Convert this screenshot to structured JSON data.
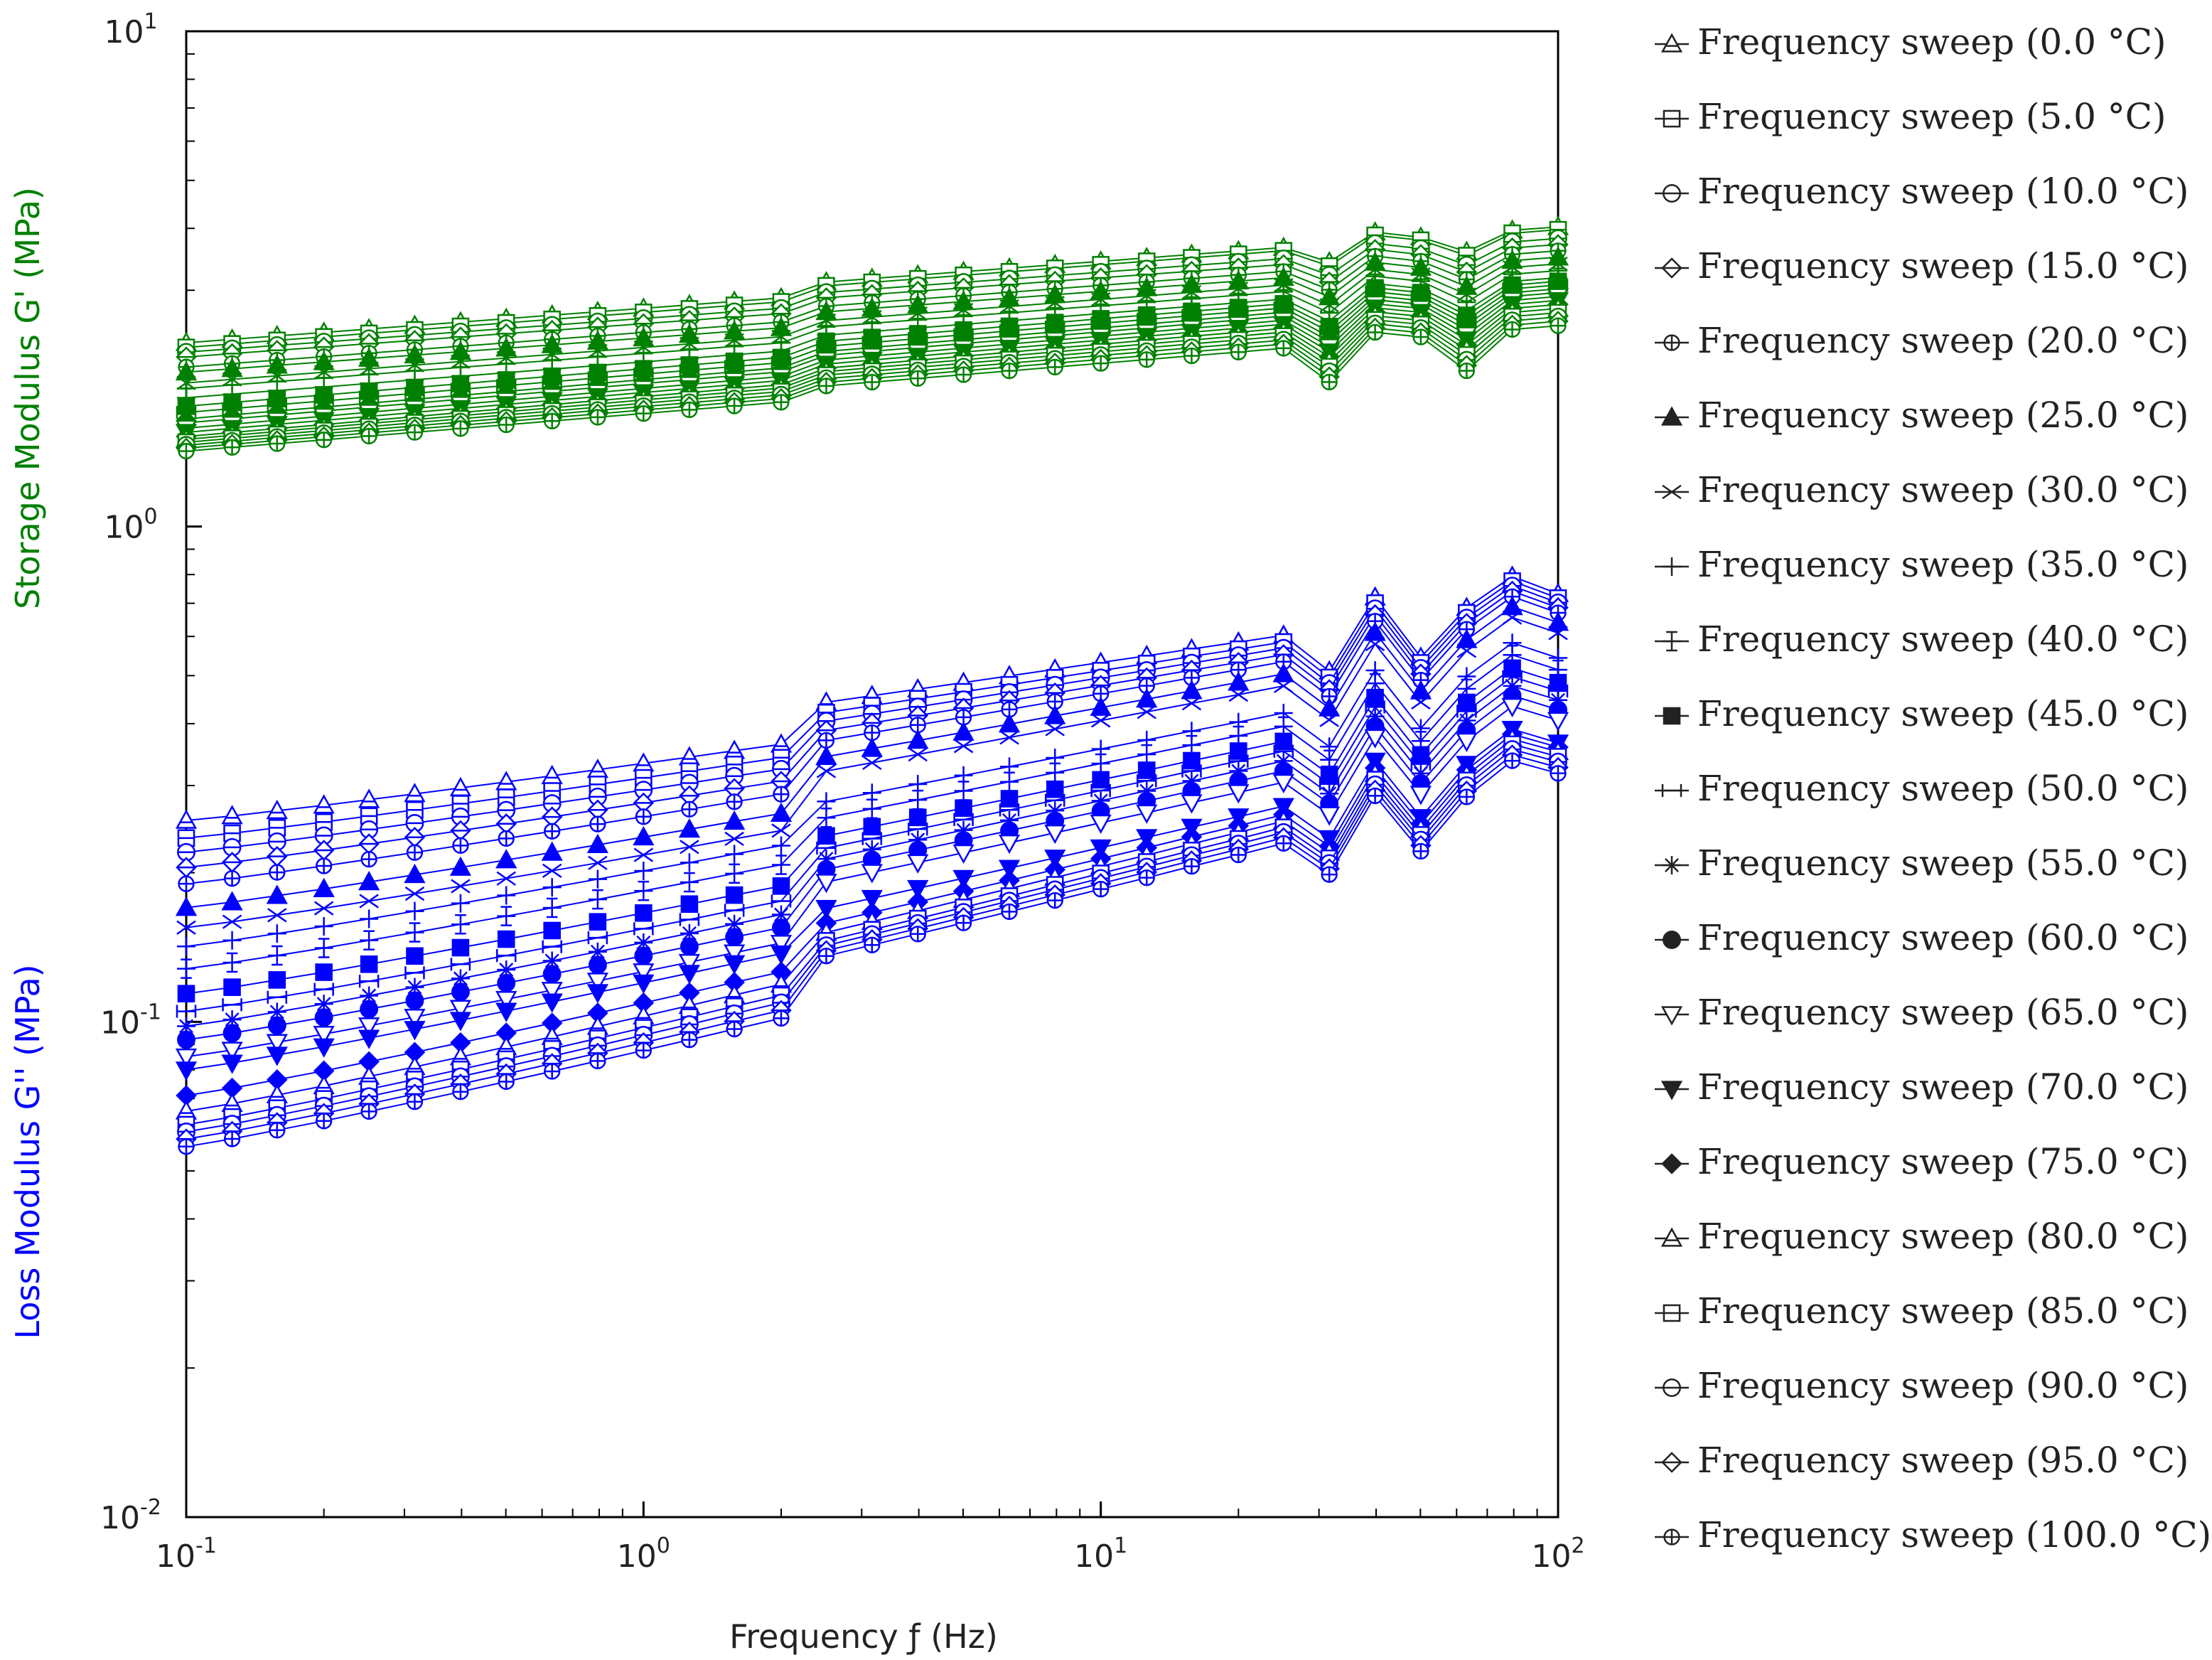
{
  "chart_data": {
    "type": "line",
    "title": "",
    "xlabel": "Frequency ƒ (Hz)",
    "y_left_label_storage": "Storage Modulus G' (MPa)",
    "y_left_label_loss": "Loss Modulus G'' (MPa)",
    "xscale": "log",
    "yscale": "log",
    "xlim": [
      0.1,
      100
    ],
    "ylim": [
      0.01,
      10
    ],
    "grid": false,
    "legend_position": "right",
    "x_ticks": [
      {
        "value": 0.1,
        "base": "10",
        "exp": "-1"
      },
      {
        "value": 1,
        "base": "10",
        "exp": "0"
      },
      {
        "value": 10,
        "base": "10",
        "exp": "1"
      },
      {
        "value": 100,
        "base": "10",
        "exp": "2"
      }
    ],
    "y_ticks": [
      {
        "value": 0.01,
        "base": "10",
        "exp": "-2"
      },
      {
        "value": 0.1,
        "base": "10",
        "exp": "-1"
      },
      {
        "value": 1,
        "base": "10",
        "exp": "0"
      },
      {
        "value": 10,
        "base": "10",
        "exp": "1"
      }
    ],
    "x": [
      0.1,
      0.126,
      0.158,
      0.2,
      0.251,
      0.316,
      0.398,
      0.501,
      0.631,
      0.794,
      1.0,
      1.26,
      1.58,
      2.0,
      2.51,
      3.16,
      3.98,
      5.01,
      6.31,
      7.94,
      10.0,
      12.6,
      15.8,
      20.0,
      25.1,
      31.6,
      39.8,
      50.1,
      63.1,
      79.4,
      100.0
    ],
    "storage_color": "#008000",
    "loss_color": "#0000ff",
    "series": [
      {
        "name": "Frequency sweep (0.0 °C)",
        "marker": "triangle-open",
        "storage_start": 2.35,
        "storage_end": 3.8,
        "loss_start": 0.255,
        "loss_end": 0.62
      },
      {
        "name": "Frequency sweep (5.0 °C)",
        "marker": "square-open",
        "storage_start": 2.3,
        "storage_end": 3.75,
        "loss_start": 0.235,
        "loss_end": 0.6
      },
      {
        "name": "Frequency sweep (10.0 °C)",
        "marker": "circle-open",
        "storage_start": 2.25,
        "storage_end": 3.6,
        "loss_start": 0.22,
        "loss_end": 0.58
      },
      {
        "name": "Frequency sweep (15.0 °C)",
        "marker": "diamond-open",
        "storage_start": 2.2,
        "storage_end": 3.5,
        "loss_start": 0.205,
        "loss_end": 0.56
      },
      {
        "name": "Frequency sweep (20.0 °C)",
        "marker": "circle-cross",
        "storage_start": 2.1,
        "storage_end": 3.4,
        "loss_start": 0.19,
        "loss_end": 0.54
      },
      {
        "name": "Frequency sweep (25.0 °C)",
        "marker": "triangle-filled",
        "storage_start": 2.05,
        "storage_end": 3.3,
        "loss_start": 0.17,
        "loss_end": 0.51
      },
      {
        "name": "Frequency sweep (30.0 °C)",
        "marker": "x",
        "storage_start": 1.95,
        "storage_end": 3.2,
        "loss_start": 0.155,
        "loss_end": 0.48
      },
      {
        "name": "Frequency sweep (35.0 °C)",
        "marker": "plus",
        "storage_start": 1.9,
        "storage_end": 3.1,
        "loss_start": 0.142,
        "loss_end": 0.46
      },
      {
        "name": "Frequency sweep (40.0 °C)",
        "marker": "plus-bar",
        "storage_start": 1.82,
        "storage_end": 3.0,
        "loss_start": 0.128,
        "loss_end": 0.43
      },
      {
        "name": "Frequency sweep (45.0 °C)",
        "marker": "square-filled",
        "storage_start": 1.75,
        "storage_end": 2.95,
        "loss_start": 0.114,
        "loss_end": 0.4
      },
      {
        "name": "Frequency sweep (50.0 °C)",
        "marker": "plus-h",
        "storage_start": 1.7,
        "storage_end": 2.9,
        "loss_start": 0.105,
        "loss_end": 0.38
      },
      {
        "name": "Frequency sweep (55.0 °C)",
        "marker": "asterisk",
        "storage_start": 1.65,
        "storage_end": 2.85,
        "loss_start": 0.098,
        "loss_end": 0.36
      },
      {
        "name": "Frequency sweep (60.0 °C)",
        "marker": "circle-filled",
        "storage_start": 1.62,
        "storage_end": 2.8,
        "loss_start": 0.092,
        "loss_end": 0.34
      },
      {
        "name": "Frequency sweep (65.0 °C)",
        "marker": "triangle-down-open",
        "storage_start": 1.58,
        "storage_end": 2.75,
        "loss_start": 0.085,
        "loss_end": 0.32
      },
      {
        "name": "Frequency sweep (70.0 °C)",
        "marker": "triangle-down-filled",
        "storage_start": 1.55,
        "storage_end": 2.7,
        "loss_start": 0.08,
        "loss_end": 0.31
      },
      {
        "name": "Frequency sweep (75.0 °C)",
        "marker": "diamond-filled",
        "storage_start": 1.52,
        "storage_end": 2.65,
        "loss_start": 0.071,
        "loss_end": 0.3
      },
      {
        "name": "Frequency sweep (80.0 °C)",
        "marker": "triangle-open",
        "storage_start": 1.5,
        "storage_end": 2.6,
        "loss_start": 0.066,
        "loss_end": 0.29
      },
      {
        "name": "Frequency sweep (85.0 °C)",
        "marker": "square-open",
        "storage_start": 1.48,
        "storage_end": 2.55,
        "loss_start": 0.062,
        "loss_end": 0.28
      },
      {
        "name": "Frequency sweep (90.0 °C)",
        "marker": "circle-open",
        "storage_start": 1.46,
        "storage_end": 2.5,
        "loss_start": 0.06,
        "loss_end": 0.27
      },
      {
        "name": "Frequency sweep (95.0 °C)",
        "marker": "diamond-open",
        "storage_start": 1.44,
        "storage_end": 2.45,
        "loss_start": 0.058,
        "loss_end": 0.26
      },
      {
        "name": "Frequency sweep (100.0 °C)",
        "marker": "circle-cross",
        "storage_start": 1.42,
        "storage_end": 2.4,
        "loss_start": 0.056,
        "loss_end": 0.25
      }
    ]
  }
}
